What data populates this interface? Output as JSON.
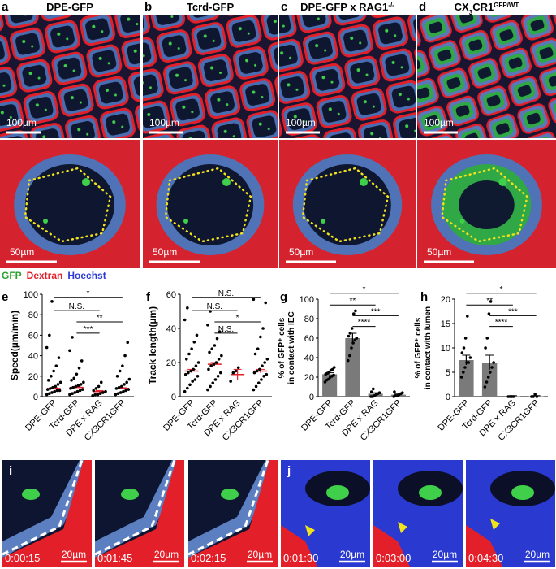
{
  "image_panels": [
    {
      "letter": "a",
      "title": [
        {
          "text": "DPE-GFP"
        }
      ],
      "scale_top": "100µm",
      "scale_bottom": "50µm"
    },
    {
      "letter": "b",
      "title": [
        {
          "text": "Tcrd-GFP"
        }
      ],
      "scale_top": "100µm",
      "scale_bottom": "50µm"
    },
    {
      "letter": "c",
      "title": [
        {
          "text": "DPE-GFP x RAG1"
        },
        {
          "text": "-/-",
          "shift": "super"
        }
      ],
      "scale_top": "100µm",
      "scale_bottom": "50µm"
    },
    {
      "letter": "d",
      "title": [
        {
          "text": "CX"
        },
        {
          "text": "3",
          "shift": "sub"
        },
        {
          "text": "CR1"
        },
        {
          "text": "GFP/WT",
          "shift": "super"
        }
      ],
      "scale_top": "100µm",
      "scale_bottom": "50µm"
    }
  ],
  "legend": [
    {
      "text": "GFP",
      "color": "#2ca02c"
    },
    {
      "text": "Dextran",
      "color": "#e3202a"
    },
    {
      "text": "Hoechst",
      "color": "#2b3bd6"
    }
  ],
  "chart_data": [
    {
      "type": "dotplot",
      "letter": "e",
      "y_label": [
        "Speed(µm/min)"
      ],
      "categories": [
        "DPE-GFP",
        "Tcrd-GFP",
        "DPE x RAG",
        "CX3CR1GFP"
      ],
      "ylim": [
        0,
        100
      ],
      "yticks": [
        0,
        20,
        40,
        60,
        80,
        100
      ],
      "means": [
        8,
        9,
        5,
        8
      ],
      "errors": [
        0.7,
        0.7,
        1,
        0.8
      ],
      "points": [
        [
          2,
          3,
          4,
          5,
          6,
          6,
          7,
          8,
          9,
          10,
          12,
          14,
          16,
          20,
          25,
          30,
          38,
          48,
          60,
          93
        ],
        [
          2,
          3,
          4,
          5,
          6,
          7,
          8,
          9,
          10,
          11,
          12,
          14,
          16,
          18,
          22,
          28,
          35,
          45,
          58
        ],
        [
          1,
          2,
          2,
          3,
          4,
          5,
          6,
          8,
          10,
          14
        ],
        [
          2,
          3,
          4,
          5,
          6,
          7,
          8,
          9,
          10,
          12,
          14,
          17,
          20,
          25,
          30,
          40,
          53
        ]
      ],
      "comparisons": [
        {
          "label": "*",
          "groups": [
            "DPE-GFP",
            "CX3CR1GFP"
          ]
        },
        {
          "label": "N.S.",
          "groups": [
            "DPE-GFP",
            "DPE x RAG"
          ]
        },
        {
          "label": "**",
          "groups": [
            "Tcrd-GFP",
            "CX3CR1GFP"
          ]
        },
        {
          "label": "***",
          "groups": [
            "Tcrd-GFP",
            "DPE x RAG"
          ]
        }
      ]
    },
    {
      "type": "dotplot",
      "letter": "f",
      "y_label": [
        "Track length(µm)"
      ],
      "categories": [
        "DPE-GFP",
        "Tcrd-GFP",
        "DPE x RAG",
        "CX3CR1GFP"
      ],
      "ylim": [
        0,
        60
      ],
      "yticks": [
        0,
        20,
        40,
        60
      ],
      "means": [
        15,
        19,
        13,
        15
      ],
      "errors": [
        1,
        1,
        3,
        1
      ],
      "points": [
        [
          3,
          5,
          7,
          9,
          10,
          12,
          13,
          14,
          15,
          16,
          18,
          20,
          22,
          25,
          28,
          32,
          36,
          45,
          52
        ],
        [
          4,
          6,
          8,
          10,
          12,
          14,
          16,
          18,
          19,
          20,
          22,
          24,
          26,
          28,
          30,
          34,
          38,
          42,
          50
        ],
        [
          9,
          14,
          15,
          17
        ],
        [
          4,
          6,
          8,
          10,
          12,
          13,
          14,
          15,
          16,
          18,
          20,
          22,
          25,
          28,
          35,
          40,
          55,
          57
        ]
      ],
      "comparisons": [
        {
          "label": "N.S.",
          "groups": [
            "DPE-GFP",
            "CX3CR1GFP"
          ]
        },
        {
          "label": "N.S.",
          "groups": [
            "DPE-GFP",
            "DPE x RAG"
          ]
        },
        {
          "label": "*",
          "groups": [
            "Tcrd-GFP",
            "CX3CR1GFP"
          ]
        },
        {
          "label": "N.S.",
          "groups": [
            "Tcrd-GFP",
            "DPE x RAG"
          ]
        }
      ]
    },
    {
      "type": "bar",
      "letter": "g",
      "y_label": [
        "% of GFP⁺ cells",
        "in contact with IEC"
      ],
      "categories": [
        "DPE-GFP",
        "Tcrd-GFP",
        "DPE x RAG",
        "CX3CR1GFP"
      ],
      "ylim": [
        0,
        100
      ],
      "yticks": [
        0,
        20,
        40,
        60,
        80,
        100
      ],
      "means": [
        23,
        60,
        3,
        2
      ],
      "errors": [
        1.5,
        5,
        1,
        0.7
      ],
      "points": [
        [
          15,
          17,
          18,
          20,
          21,
          22,
          23,
          24,
          25,
          27,
          28,
          30
        ],
        [
          37,
          42,
          50,
          55,
          58,
          60,
          62,
          65,
          70,
          85,
          88
        ],
        [
          0,
          0,
          1,
          2,
          3,
          4,
          5,
          8
        ],
        [
          0,
          1,
          1,
          2,
          3,
          4,
          5
        ]
      ],
      "comparisons": [
        {
          "label": "*",
          "groups": [
            "DPE-GFP",
            "CX3CR1GFP"
          ]
        },
        {
          "label": "**",
          "groups": [
            "DPE-GFP",
            "DPE x RAG"
          ]
        },
        {
          "label": "***",
          "groups": [
            "Tcrd-GFP",
            "CX3CR1GFP"
          ]
        },
        {
          "label": "****",
          "groups": [
            "Tcrd-GFP",
            "DPE x RAG"
          ]
        }
      ]
    },
    {
      "type": "bar",
      "letter": "h",
      "y_label": [
        "% of GFP⁺ cells",
        "in contact with lumen"
      ],
      "categories": [
        "DPE-GFP",
        "Tcrd-GFP",
        "DPE x RAG",
        "CX3CR1GFP"
      ],
      "ylim": [
        0,
        20
      ],
      "yticks": [
        0,
        5,
        10,
        15,
        20
      ],
      "means": [
        7.5,
        7,
        0.1,
        0.1
      ],
      "errors": [
        1,
        1.5,
        0.1,
        0.1
      ],
      "points": [
        [
          4,
          5,
          6,
          7,
          7,
          8,
          9,
          10,
          12,
          16.5
        ],
        [
          2,
          3,
          4,
          5,
          6,
          7,
          10,
          12,
          17,
          19.5
        ],
        [
          0,
          0,
          0,
          0
        ],
        [
          0,
          0,
          0.5,
          0
        ]
      ],
      "comparisons": [
        {
          "label": "*",
          "groups": [
            "DPE-GFP",
            "CX3CR1GFP"
          ]
        },
        {
          "label": "**",
          "groups": [
            "DPE-GFP",
            "DPE x RAG"
          ]
        },
        {
          "label": "***",
          "groups": [
            "Tcrd-GFP",
            "CX3CR1GFP"
          ]
        },
        {
          "label": "****",
          "groups": [
            "Tcrd-GFP",
            "DPE x RAG"
          ]
        }
      ]
    }
  ],
  "time_lapse": [
    {
      "letter": "i",
      "frames": [
        {
          "time": "0:00:15",
          "scale": "20µm"
        },
        {
          "time": "0:01:45",
          "scale": "20µm"
        },
        {
          "time": "0:02:15",
          "scale": "20µm"
        }
      ]
    },
    {
      "letter": "j",
      "frames": [
        {
          "time": "0:01:30",
          "scale": "20µm"
        },
        {
          "time": "0:03:00",
          "scale": "20µm"
        },
        {
          "time": "0:04:30",
          "scale": "20µm"
        }
      ]
    }
  ]
}
